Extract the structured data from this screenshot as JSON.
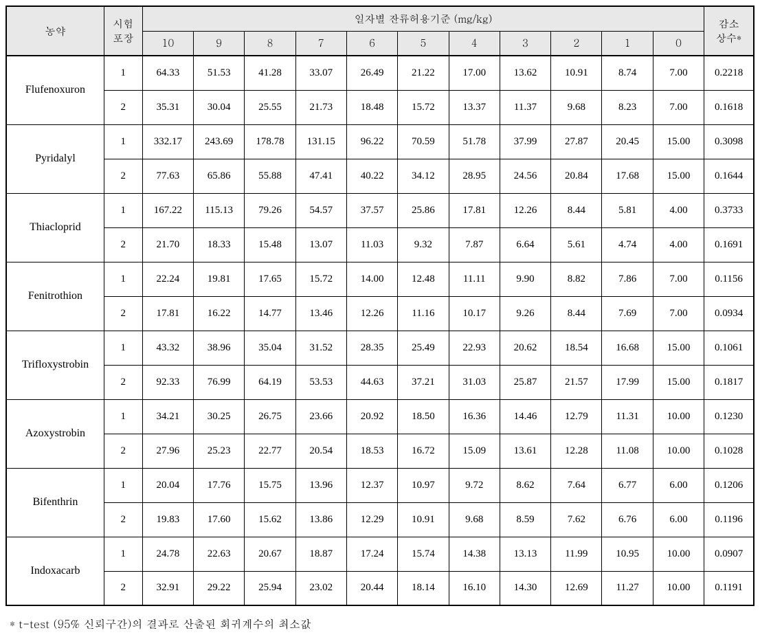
{
  "header": {
    "col_pesticide": "농약",
    "col_trial_line1": "시험",
    "col_trial_line2": "포장",
    "col_group": "일자별 잔류허용기준 (mg/kg)",
    "col_reduce_line1": "감소",
    "col_reduce_line2": "상수*",
    "days": [
      "10",
      "9",
      "8",
      "7",
      "6",
      "5",
      "4",
      "3",
      "2",
      "1",
      "0"
    ]
  },
  "pesticides": [
    {
      "name": "Flufenoxuron",
      "rows": [
        {
          "trial": "1",
          "vals": [
            "64.33",
            "51.53",
            "41.28",
            "33.07",
            "26.49",
            "21.22",
            "17.00",
            "13.62",
            "10.91",
            "8.74",
            "7.00"
          ],
          "k": "0.2218"
        },
        {
          "trial": "2",
          "vals": [
            "35.31",
            "30.04",
            "25.55",
            "21.73",
            "18.48",
            "15.72",
            "13.37",
            "11.37",
            "9.68",
            "8.23",
            "7.00"
          ],
          "k": "0.1618"
        }
      ]
    },
    {
      "name": "Pyridalyl",
      "rows": [
        {
          "trial": "1",
          "vals": [
            "332.17",
            "243.69",
            "178.78",
            "131.15",
            "96.22",
            "70.59",
            "51.78",
            "37.99",
            "27.87",
            "20.45",
            "15.00"
          ],
          "k": "0.3098"
        },
        {
          "trial": "2",
          "vals": [
            "77.63",
            "65.86",
            "55.88",
            "47.41",
            "40.22",
            "34.12",
            "28.95",
            "24.56",
            "20.84",
            "17.68",
            "15.00"
          ],
          "k": "0.1644"
        }
      ]
    },
    {
      "name": "Thiacloprid",
      "rows": [
        {
          "trial": "1",
          "vals": [
            "167.22",
            "115.13",
            "79.26",
            "54.57",
            "37.57",
            "25.86",
            "17.81",
            "12.26",
            "8.44",
            "5.81",
            "4.00"
          ],
          "k": "0.3733"
        },
        {
          "trial": "2",
          "vals": [
            "21.70",
            "18.33",
            "15.48",
            "13.07",
            "11.03",
            "9.32",
            "7.87",
            "6.64",
            "5.61",
            "4.74",
            "4.00"
          ],
          "k": "0.1691"
        }
      ]
    },
    {
      "name": "Fenitrothion",
      "rows": [
        {
          "trial": "1",
          "vals": [
            "22.24",
            "19.81",
            "17.65",
            "15.72",
            "14.00",
            "12.48",
            "11.11",
            "9.90",
            "8.82",
            "7.86",
            "7.00"
          ],
          "k": "0.1156"
        },
        {
          "trial": "2",
          "vals": [
            "17.81",
            "16.22",
            "14.77",
            "13.46",
            "12.26",
            "11.16",
            "10.17",
            "9.26",
            "8.44",
            "7.69",
            "7.00"
          ],
          "k": "0.0934"
        }
      ]
    },
    {
      "name": "Trifloxystrobin",
      "rows": [
        {
          "trial": "1",
          "vals": [
            "43.32",
            "38.96",
            "35.04",
            "31.52",
            "28.35",
            "25.49",
            "22.93",
            "20.62",
            "18.54",
            "16.68",
            "15.00"
          ],
          "k": "0.1061"
        },
        {
          "trial": "2",
          "vals": [
            "92.33",
            "76.99",
            "64.19",
            "53.53",
            "44.63",
            "37.21",
            "31.03",
            "25.87",
            "21.57",
            "17.99",
            "15.00"
          ],
          "k": "0.1817"
        }
      ]
    },
    {
      "name": "Azoxystrobin",
      "rows": [
        {
          "trial": "1",
          "vals": [
            "34.21",
            "30.25",
            "26.75",
            "23.66",
            "20.92",
            "18.50",
            "16.36",
            "14.46",
            "12.79",
            "11.31",
            "10.00"
          ],
          "k": "0.1230"
        },
        {
          "trial": "2",
          "vals": [
            "27.96",
            "25.23",
            "22.77",
            "20.54",
            "18.53",
            "16.72",
            "15.09",
            "13.61",
            "12.28",
            "11.08",
            "10.00"
          ],
          "k": "0.1028"
        }
      ]
    },
    {
      "name": "Bifenthrin",
      "rows": [
        {
          "trial": "1",
          "vals": [
            "20.04",
            "17.76",
            "15.75",
            "13.96",
            "12.37",
            "10.97",
            "9.72",
            "8.62",
            "7.64",
            "6.77",
            "6.00"
          ],
          "k": "0.1206"
        },
        {
          "trial": "2",
          "vals": [
            "19.83",
            "17.60",
            "15.62",
            "13.86",
            "12.29",
            "10.91",
            "9.68",
            "8.59",
            "7.62",
            "6.76",
            "6.00"
          ],
          "k": "0.1196"
        }
      ]
    },
    {
      "name": "Indoxacarb",
      "rows": [
        {
          "trial": "1",
          "vals": [
            "24.78",
            "22.63",
            "20.67",
            "18.87",
            "17.24",
            "15.74",
            "14.38",
            "13.13",
            "11.99",
            "10.95",
            "10.00"
          ],
          "k": "0.0907"
        },
        {
          "trial": "2",
          "vals": [
            "32.91",
            "29.22",
            "25.94",
            "23.02",
            "20.44",
            "18.14",
            "16.10",
            "14.30",
            "12.69",
            "11.27",
            "10.00"
          ],
          "k": "0.1191"
        }
      ]
    }
  ],
  "footnote": "* t-test (95% 신뢰구간)의 결과로 산출된 회귀계수의 최소값",
  "style": {
    "header_bg": "#e8e8e8",
    "body_bg": "#ffffff",
    "border_color": "#000000",
    "font_size_cell": 15,
    "font_size_footnote": 16
  }
}
